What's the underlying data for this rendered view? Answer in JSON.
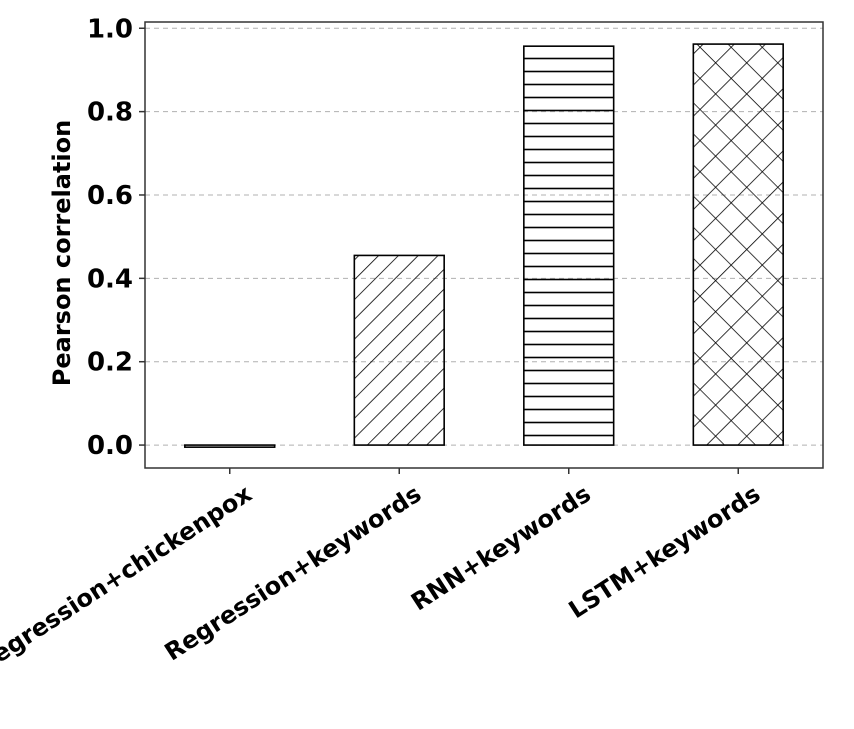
{
  "chart_data": {
    "type": "bar",
    "title": "",
    "xlabel": "",
    "ylabel": "Pearson correlation",
    "categories": [
      "Regression+chickenpox",
      "Regression+keywords",
      "RNN+keywords",
      "LSTM+keywords"
    ],
    "values": [
      -0.005,
      0.455,
      0.957,
      0.962
    ],
    "ylim": [
      -0.055,
      1.015
    ],
    "yticks": [
      0.0,
      0.2,
      0.4,
      0.6,
      0.8,
      1.0
    ],
    "ytick_labels": [
      "0.0",
      "0.2",
      "0.4",
      "0.6",
      "0.8",
      "1.0"
    ],
    "grid": true,
    "bar_fill": [
      "none",
      "diagonal-hatch",
      "horizontal-hatch",
      "cross-hatch"
    ],
    "colors": {
      "bar_edge": "#000000",
      "grid": "#b0b0b0",
      "axis": "#333333"
    }
  }
}
